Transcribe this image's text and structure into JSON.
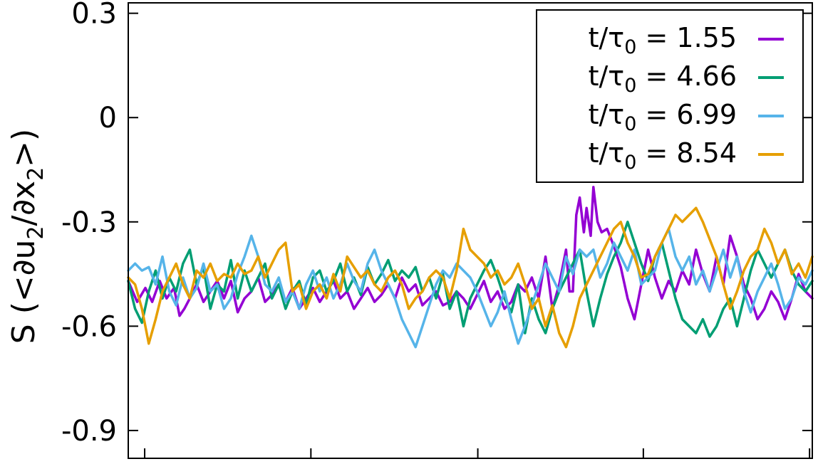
{
  "chart_data": {
    "type": "line",
    "title": "",
    "xlabel": "",
    "ylabel": {
      "prefix": "S (<∂u",
      "sub1": "2",
      "mid": "/∂x",
      "sub2": "2",
      "suffix": ">)"
    },
    "ylim": [
      -0.98,
      0.33
    ],
    "xlim": [
      0,
      100
    ],
    "yticks": [
      0.3,
      0,
      -0.3,
      -0.6,
      -0.9
    ],
    "ytick_labels": [
      "0.3",
      "0",
      "-0.3",
      "-0.6",
      "-0.9"
    ],
    "xticks": [
      2.4,
      26.7,
      51.1,
      75.3,
      99.6
    ],
    "grid": false,
    "legend_position": "top-right",
    "series": [
      {
        "name": "t/τ₀ = 1.55",
        "label": {
          "prefix": "t/τ",
          "sub": "0",
          "suffix": " = 1.55"
        },
        "color": "#9400D3",
        "x": [
          0,
          1.3,
          2.5,
          3.5,
          4.6,
          5.6,
          6.7,
          7.5,
          8.2,
          9,
          10,
          11,
          12,
          13,
          14,
          15,
          16,
          17,
          18,
          19,
          20,
          21,
          22,
          23,
          24,
          25,
          26,
          27,
          28,
          29,
          30,
          31,
          32,
          33,
          34,
          35,
          36,
          37,
          38,
          39,
          40,
          41,
          42,
          43,
          44,
          45,
          46,
          47,
          48,
          49,
          50,
          51,
          52,
          53,
          54,
          55,
          56,
          57,
          58,
          59,
          60,
          61,
          62,
          63,
          64,
          64.5,
          65,
          65.5,
          66,
          66.6,
          67,
          67.6,
          68,
          68.6,
          69.2,
          70,
          71,
          72,
          73,
          74,
          75,
          76,
          77,
          78,
          79,
          80,
          81,
          82,
          83,
          84,
          85,
          86,
          87,
          88,
          89,
          90,
          91,
          92,
          93,
          94,
          95,
          96,
          97,
          98,
          99,
          100
        ],
        "y": [
          -0.47,
          -0.53,
          -0.49,
          -0.53,
          -0.47,
          -0.52,
          -0.49,
          -0.57,
          -0.55,
          -0.52,
          -0.48,
          -0.53,
          -0.5,
          -0.47,
          -0.52,
          -0.47,
          -0.56,
          -0.52,
          -0.5,
          -0.46,
          -0.53,
          -0.51,
          -0.48,
          -0.53,
          -0.49,
          -0.55,
          -0.52,
          -0.49,
          -0.53,
          -0.5,
          -0.47,
          -0.52,
          -0.5,
          -0.55,
          -0.52,
          -0.49,
          -0.53,
          -0.51,
          -0.48,
          -0.52,
          -0.46,
          -0.5,
          -0.48,
          -0.54,
          -0.52,
          -0.5,
          -0.54,
          -0.53,
          -0.5,
          -0.52,
          -0.55,
          -0.51,
          -0.47,
          -0.53,
          -0.5,
          -0.55,
          -0.53,
          -0.48,
          -0.5,
          -0.46,
          -0.52,
          -0.4,
          -0.55,
          -0.48,
          -0.38,
          -0.5,
          -0.5,
          -0.28,
          -0.23,
          -0.33,
          -0.26,
          -0.34,
          -0.2,
          -0.3,
          -0.33,
          -0.32,
          -0.37,
          -0.43,
          -0.52,
          -0.58,
          -0.48,
          -0.38,
          -0.46,
          -0.52,
          -0.47,
          -0.5,
          -0.44,
          -0.48,
          -0.38,
          -0.45,
          -0.5,
          -0.4,
          -0.48,
          -0.34,
          -0.4,
          -0.48,
          -0.52,
          -0.58,
          -0.55,
          -0.5,
          -0.53,
          -0.58,
          -0.52,
          -0.45,
          -0.5,
          -0.52
        ]
      },
      {
        "name": "t/τ₀ = 4.66",
        "label": {
          "prefix": "t/τ",
          "sub": "0",
          "suffix": " = 4.66"
        },
        "color": "#009E73",
        "x": [
          0,
          1,
          2,
          3,
          4,
          5,
          6,
          7,
          8,
          9,
          10,
          11,
          12,
          13,
          14,
          15,
          16,
          17,
          18,
          19,
          20,
          21,
          22,
          23,
          24,
          25,
          26,
          27,
          28,
          29,
          30,
          31,
          32,
          33,
          34,
          35,
          36,
          37,
          38,
          39,
          40,
          41,
          42,
          43,
          44,
          45,
          46,
          47,
          48,
          49,
          50,
          51,
          52,
          53,
          54,
          55,
          56,
          57,
          58,
          59,
          60,
          61,
          62,
          63,
          64,
          65,
          66,
          67,
          68,
          69,
          70,
          71,
          72,
          73,
          74,
          75,
          76,
          77,
          78,
          79,
          80,
          81,
          82,
          83,
          84,
          85,
          86,
          87,
          88,
          89,
          90,
          91,
          92,
          93,
          94,
          95,
          96,
          97,
          98,
          99,
          100
        ],
        "y": [
          -0.47,
          -0.55,
          -0.59,
          -0.5,
          -0.44,
          -0.52,
          -0.46,
          -0.5,
          -0.42,
          -0.38,
          -0.48,
          -0.43,
          -0.55,
          -0.48,
          -0.5,
          -0.41,
          -0.52,
          -0.44,
          -0.5,
          -0.46,
          -0.42,
          -0.52,
          -0.48,
          -0.55,
          -0.5,
          -0.47,
          -0.54,
          -0.46,
          -0.44,
          -0.5,
          -0.47,
          -0.42,
          -0.5,
          -0.46,
          -0.51,
          -0.43,
          -0.48,
          -0.45,
          -0.41,
          -0.47,
          -0.44,
          -0.46,
          -0.43,
          -0.5,
          -0.46,
          -0.52,
          -0.45,
          -0.55,
          -0.5,
          -0.6,
          -0.52,
          -0.48,
          -0.44,
          -0.41,
          -0.46,
          -0.52,
          -0.56,
          -0.48,
          -0.62,
          -0.52,
          -0.58,
          -0.62,
          -0.55,
          -0.5,
          -0.46,
          -0.42,
          -0.38,
          -0.5,
          -0.6,
          -0.52,
          -0.45,
          -0.4,
          -0.36,
          -0.3,
          -0.36,
          -0.42,
          -0.47,
          -0.4,
          -0.36,
          -0.44,
          -0.52,
          -0.58,
          -0.6,
          -0.62,
          -0.58,
          -0.63,
          -0.6,
          -0.55,
          -0.52,
          -0.6,
          -0.52,
          -0.44,
          -0.38,
          -0.42,
          -0.46,
          -0.42,
          -0.38,
          -0.44,
          -0.48,
          -0.5,
          -0.47
        ]
      },
      {
        "name": "t/τ₀ = 6.99",
        "label": {
          "prefix": "t/τ",
          "sub": "0",
          "suffix": " = 6.99"
        },
        "color": "#56B4E9",
        "x": [
          0,
          1,
          2,
          3,
          4,
          5,
          6,
          7,
          8,
          9,
          10,
          11,
          12,
          13,
          14,
          15,
          16,
          17,
          18,
          19,
          20,
          21,
          22,
          23,
          24,
          25,
          26,
          27,
          28,
          29,
          30,
          31,
          32,
          33,
          34,
          35,
          36,
          37,
          38,
          39,
          40,
          41,
          42,
          43,
          44,
          45,
          46,
          47,
          48,
          49,
          50,
          51,
          52,
          53,
          54,
          55,
          56,
          57,
          58,
          59,
          60,
          61,
          62,
          63,
          64,
          65,
          66,
          67,
          68,
          69,
          70,
          71,
          72,
          73,
          74,
          75,
          76,
          77,
          78,
          79,
          80,
          81,
          82,
          83,
          84,
          85,
          86,
          87,
          88,
          89,
          90,
          91,
          92,
          93,
          94,
          95,
          96,
          97,
          98,
          99,
          100
        ],
        "y": [
          -0.44,
          -0.42,
          -0.44,
          -0.43,
          -0.48,
          -0.4,
          -0.5,
          -0.54,
          -0.46,
          -0.52,
          -0.49,
          -0.42,
          -0.5,
          -0.48,
          -0.55,
          -0.52,
          -0.45,
          -0.4,
          -0.34,
          -0.4,
          -0.48,
          -0.5,
          -0.46,
          -0.53,
          -0.5,
          -0.55,
          -0.48,
          -0.44,
          -0.5,
          -0.46,
          -0.52,
          -0.48,
          -0.42,
          -0.47,
          -0.5,
          -0.42,
          -0.38,
          -0.44,
          -0.48,
          -0.52,
          -0.58,
          -0.62,
          -0.66,
          -0.6,
          -0.54,
          -0.48,
          -0.44,
          -0.46,
          -0.42,
          -0.44,
          -0.46,
          -0.5,
          -0.55,
          -0.6,
          -0.56,
          -0.5,
          -0.58,
          -0.65,
          -0.6,
          -0.54,
          -0.48,
          -0.42,
          -0.46,
          -0.5,
          -0.4,
          -0.45,
          -0.38,
          -0.4,
          -0.38,
          -0.46,
          -0.42,
          -0.36,
          -0.4,
          -0.44,
          -0.38,
          -0.48,
          -0.46,
          -0.44,
          -0.36,
          -0.32,
          -0.4,
          -0.44,
          -0.4,
          -0.48,
          -0.44,
          -0.5,
          -0.44,
          -0.38,
          -0.46,
          -0.4,
          -0.5,
          -0.56,
          -0.5,
          -0.46,
          -0.42,
          -0.48,
          -0.55,
          -0.52,
          -0.46,
          -0.48,
          -0.44
        ]
      },
      {
        "name": "t/τ₀ = 8.54",
        "label": {
          "prefix": "t/τ",
          "sub": "0",
          "suffix": " = 8.54"
        },
        "color": "#E69F00",
        "x": [
          0,
          1,
          2,
          3,
          4,
          5,
          6,
          7,
          8,
          9,
          10,
          11,
          12,
          13,
          14,
          15,
          16,
          17,
          18,
          19,
          20,
          21,
          22,
          23,
          24,
          25,
          26,
          27,
          28,
          29,
          30,
          31,
          32,
          33,
          34,
          35,
          36,
          37,
          38,
          39,
          40,
          41,
          42,
          43,
          44,
          45,
          46,
          47,
          48,
          49,
          50,
          51,
          52,
          53,
          54,
          55,
          56,
          57,
          58,
          59,
          60,
          61,
          62,
          63,
          64,
          65,
          66,
          67,
          68,
          69,
          70,
          71,
          72,
          73,
          74,
          75,
          76,
          77,
          78,
          79,
          80,
          81,
          82,
          83,
          84,
          85,
          86,
          87,
          88,
          89,
          90,
          91,
          92,
          93,
          94,
          95,
          96,
          97,
          98,
          99,
          100
        ],
        "y": [
          -0.46,
          -0.48,
          -0.55,
          -0.65,
          -0.58,
          -0.5,
          -0.46,
          -0.42,
          -0.48,
          -0.52,
          -0.44,
          -0.46,
          -0.42,
          -0.47,
          -0.45,
          -0.46,
          -0.42,
          -0.45,
          -0.44,
          -0.4,
          -0.46,
          -0.42,
          -0.38,
          -0.36,
          -0.5,
          -0.48,
          -0.55,
          -0.5,
          -0.48,
          -0.52,
          -0.45,
          -0.5,
          -0.4,
          -0.43,
          -0.46,
          -0.44,
          -0.48,
          -0.5,
          -0.46,
          -0.44,
          -0.48,
          -0.55,
          -0.52,
          -0.5,
          -0.46,
          -0.44,
          -0.46,
          -0.52,
          -0.44,
          -0.32,
          -0.38,
          -0.4,
          -0.42,
          -0.46,
          -0.44,
          -0.48,
          -0.46,
          -0.42,
          -0.48,
          -0.55,
          -0.52,
          -0.6,
          -0.54,
          -0.62,
          -0.66,
          -0.6,
          -0.52,
          -0.48,
          -0.44,
          -0.4,
          -0.36,
          -0.32,
          -0.3,
          -0.36,
          -0.4,
          -0.46,
          -0.45,
          -0.4,
          -0.36,
          -0.32,
          -0.28,
          -0.3,
          -0.28,
          -0.26,
          -0.3,
          -0.35,
          -0.4,
          -0.48,
          -0.55,
          -0.5,
          -0.44,
          -0.4,
          -0.38,
          -0.32,
          -0.36,
          -0.42,
          -0.38,
          -0.45,
          -0.42,
          -0.46,
          -0.4
        ]
      }
    ]
  }
}
